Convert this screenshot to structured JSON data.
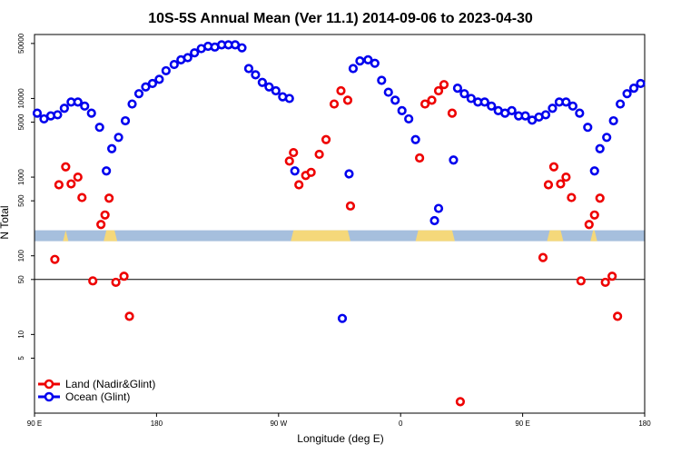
{
  "chart_data": {
    "type": "scatter",
    "title": "10S-5S Annual Mean (Ver 11.1)   2014-09-06 to 2023-04-30",
    "xlabel": "Longitude (deg E)",
    "ylabel": "N Total",
    "xlim": [
      90,
      540
    ],
    "ylim": [
      1,
      65000
    ],
    "yscale": "log",
    "x_ticks": [
      {
        "value": 90,
        "label": "90 E"
      },
      {
        "value": 180,
        "label": "180"
      },
      {
        "value": 270,
        "label": "90 W"
      },
      {
        "value": 360,
        "label": "0"
      },
      {
        "value": 450,
        "label": "90 E"
      },
      {
        "value": 540,
        "label": "180"
      }
    ],
    "y_ticks": [
      {
        "value": 5,
        "label": "5"
      },
      {
        "value": 10,
        "label": "10"
      },
      {
        "value": 50,
        "label": "50"
      },
      {
        "value": 100,
        "label": "100"
      },
      {
        "value": 500,
        "label": "500"
      },
      {
        "value": 1000,
        "label": "1000"
      },
      {
        "value": 5000,
        "label": "5000"
      },
      {
        "value": 10000,
        "label": "10000"
      },
      {
        "value": 50000,
        "label": "50000"
      }
    ],
    "reference_line": 50,
    "map_strip": {
      "y_value": 180,
      "land_longitudes": [
        [
          111,
          115
        ],
        [
          141,
          151
        ],
        [
          279,
          323
        ],
        [
          371,
          400
        ],
        [
          468,
          480
        ],
        [
          500,
          505
        ]
      ]
    },
    "series": [
      {
        "name": "Land (Nadir&Glint)",
        "color": "#ee0000",
        "points": [
          [
            105,
            90
          ],
          [
            108,
            800
          ],
          [
            113,
            1350
          ],
          [
            117,
            820
          ],
          [
            122,
            1000
          ],
          [
            125,
            550
          ],
          [
            133,
            48
          ],
          [
            139,
            250
          ],
          [
            142,
            330
          ],
          [
            145,
            540
          ],
          [
            150,
            46
          ],
          [
            156,
            55
          ],
          [
            160,
            17
          ],
          [
            278,
            1600
          ],
          [
            281,
            2050
          ],
          [
            285,
            800
          ],
          [
            290,
            1050
          ],
          [
            294,
            1150
          ],
          [
            300,
            1950
          ],
          [
            305,
            3000
          ],
          [
            311,
            8500
          ],
          [
            316,
            12500
          ],
          [
            321,
            9500
          ],
          [
            323,
            430
          ],
          [
            374,
            1750
          ],
          [
            378,
            8500
          ],
          [
            383,
            9500
          ],
          [
            388,
            12500
          ],
          [
            392,
            15000
          ],
          [
            398,
            6500
          ],
          [
            404,
            1.4
          ],
          [
            465,
            95
          ],
          [
            469,
            800
          ],
          [
            473,
            1350
          ],
          [
            478,
            820
          ],
          [
            482,
            1000
          ],
          [
            486,
            550
          ],
          [
            493,
            48
          ],
          [
            499,
            250
          ],
          [
            503,
            330
          ],
          [
            507,
            540
          ],
          [
            511,
            46
          ],
          [
            516,
            55
          ],
          [
            520,
            17
          ]
        ]
      },
      {
        "name": "Ocean (Glint)",
        "color": "#0000ee",
        "points": [
          [
            92,
            6500
          ],
          [
            97,
            5500
          ],
          [
            102,
            6000
          ],
          [
            107,
            6200
          ],
          [
            112,
            7500
          ],
          [
            117,
            9000
          ],
          [
            122,
            9000
          ],
          [
            127,
            8000
          ],
          [
            132,
            6500
          ],
          [
            138,
            4300
          ],
          [
            143,
            1200
          ],
          [
            147,
            2300
          ],
          [
            152,
            3200
          ],
          [
            157,
            5200
          ],
          [
            162,
            8500
          ],
          [
            167,
            11500
          ],
          [
            172,
            14000
          ],
          [
            177,
            15500
          ],
          [
            182,
            17500
          ],
          [
            187,
            22500
          ],
          [
            193,
            27000
          ],
          [
            198,
            31000
          ],
          [
            203,
            33000
          ],
          [
            208,
            38000
          ],
          [
            213,
            43000
          ],
          [
            218,
            46000
          ],
          [
            223,
            45000
          ],
          [
            228,
            48000
          ],
          [
            233,
            48000
          ],
          [
            238,
            48000
          ],
          [
            243,
            44000
          ],
          [
            248,
            24000
          ],
          [
            253,
            20000
          ],
          [
            258,
            16000
          ],
          [
            263,
            14000
          ],
          [
            268,
            12500
          ],
          [
            273,
            10500
          ],
          [
            278,
            10000
          ],
          [
            282,
            1200
          ],
          [
            317,
            16
          ],
          [
            322,
            1100
          ],
          [
            325,
            24000
          ],
          [
            330,
            30000
          ],
          [
            336,
            31000
          ],
          [
            341,
            28000
          ],
          [
            346,
            17000
          ],
          [
            351,
            12000
          ],
          [
            356,
            9500
          ],
          [
            361,
            7000
          ],
          [
            366,
            5500
          ],
          [
            371,
            3000
          ],
          [
            399,
            1650
          ],
          [
            402,
            13500
          ],
          [
            407,
            11500
          ],
          [
            412,
            10000
          ],
          [
            417,
            9000
          ],
          [
            422,
            9000
          ],
          [
            427,
            8000
          ],
          [
            432,
            7000
          ],
          [
            437,
            6500
          ],
          [
            442,
            7000
          ],
          [
            447,
            6000
          ],
          [
            452,
            6000
          ],
          [
            457,
            5300
          ],
          [
            462,
            5800
          ],
          [
            467,
            6200
          ],
          [
            472,
            7500
          ],
          [
            477,
            9000
          ],
          [
            482,
            9000
          ],
          [
            487,
            8000
          ],
          [
            492,
            6500
          ],
          [
            498,
            4300
          ],
          [
            503,
            1200
          ],
          [
            507,
            2300
          ],
          [
            512,
            3200
          ],
          [
            517,
            5200
          ],
          [
            522,
            8500
          ],
          [
            527,
            11500
          ],
          [
            532,
            13500
          ],
          [
            537,
            15500
          ],
          [
            385,
            280
          ],
          [
            388,
            400
          ]
        ]
      }
    ],
    "legend": {
      "placement": "bottom-left"
    }
  }
}
